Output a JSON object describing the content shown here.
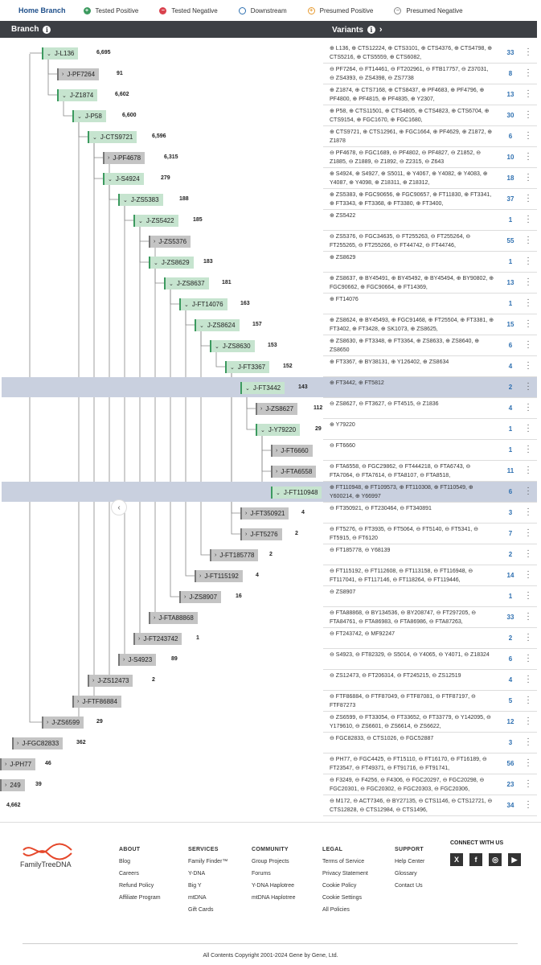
{
  "topbar": {
    "tab": "Home Branch",
    "legend": [
      {
        "label": "Tested Positive",
        "icon": "plus-circle-icon"
      },
      {
        "label": "Tested Negative",
        "icon": "minus-circle-icon"
      },
      {
        "label": "Downstream",
        "icon": "circle-icon"
      },
      {
        "label": "Presumed Positive",
        "icon": "plus-circle-outline-icon"
      },
      {
        "label": "Presumed Negative",
        "icon": "minus-circle-outline-icon"
      }
    ]
  },
  "header": {
    "branch": "Branch",
    "variants": "Variants"
  },
  "colors": {
    "positive": "#3c9a5f",
    "negative": "#d9414d",
    "downstream": "#2d6fb0",
    "presumed_positive": "#e79a2f",
    "header_bg": "#3c3f44",
    "highlight": "#c9d0df"
  },
  "rows": [
    {
      "name": "J-L136",
      "count": "6,695",
      "green": true,
      "variants": "⊕ L136, ⊕ CTS12224, ⊕ CTS3101, ⊕ CTS4376, ⊕ CTS4798, ⊕ CTS5216, ⊕ CTS5559, ⊕ CTS6082,",
      "vcount": "33"
    },
    {
      "name": "J-PF7264",
      "count": "91",
      "green": false,
      "variants": "⊖ PF7264, ⊖ FT14461, ⊖ FT202961, ⊖ FTB17757, ⊖ Z37031, ⊖ ZS4393, ⊖ ZS4398, ⊖ ZS7738",
      "vcount": "8"
    },
    {
      "name": "J-Z1874",
      "count": "6,602",
      "green": true,
      "variants": "⊕ Z1874, ⊕ CTS7168, ⊕ CTS8437, ⊕ PF4683, ⊕ PF4796, ⊕ PF4800, ⊕ PF4815, ⊕ PF4835, ⊕ Y2307,",
      "vcount": "13"
    },
    {
      "name": "J-P58",
      "count": "6,600",
      "green": true,
      "variants": "⊕ P58, ⊕ CTS11501, ⊕ CTS4805, ⊕ CTS4823, ⊕ CTS6704, ⊕ CTS9154, ⊕ FGC1670, ⊕ FGC1680,",
      "vcount": "30"
    },
    {
      "name": "J-CTS9721",
      "count": "6,596",
      "green": true,
      "variants": "⊕ CTS9721, ⊕ CTS12961, ⊕ FGC1664, ⊕ PF4629, ⊕ Z1872, ⊕ Z1878",
      "vcount": "6"
    },
    {
      "name": "J-PF4678",
      "count": "6,315",
      "green": false,
      "variants": "⊖ PF4678, ⊖ FGC1689, ⊖ PF4802, ⊖ PF4827, ⊖ Z1852, ⊖ Z1885, ⊖ Z1889, ⊖ Z1892, ⊖ Z2315, ⊖ Z643",
      "vcount": "10"
    },
    {
      "name": "J-S4924",
      "count": "279",
      "green": true,
      "variants": "⊕ S4924, ⊕ S4927, ⊕ S5011, ⊕ Y4067, ⊕ Y4082, ⊕ Y4083, ⊕ Y4087, ⊕ Y4098, ⊕ Z18311, ⊕ Z18312,",
      "vcount": "18"
    },
    {
      "name": "J-ZS5383",
      "count": "188",
      "green": true,
      "variants": "⊕ ZS5383, ⊕ FGC90656, ⊕ FGC90657, ⊕ FT11830, ⊕ FT3341, ⊕ FT3343, ⊕ FT3368, ⊕ FT3380, ⊕ FT3400,",
      "vcount": "37"
    },
    {
      "name": "J-ZS5422",
      "count": "185",
      "green": true,
      "variants": "⊕ ZS5422",
      "vcount": "1"
    },
    {
      "name": "J-ZS5376",
      "count": "",
      "green": false,
      "variants": "⊖ ZS5376, ⊖ FGC34635, ⊖ FT255263, ⊖ FT255264, ⊖ FT255265, ⊖ FT255266, ⊖ FT44742, ⊖ FT44746,",
      "vcount": "55"
    },
    {
      "name": "J-ZS8629",
      "count": "183",
      "green": true,
      "variants": "⊕ ZS8629",
      "vcount": "1"
    },
    {
      "name": "J-ZS8637",
      "count": "181",
      "green": true,
      "variants": "⊕ ZS8637, ⊕ BY45491, ⊕ BY45492, ⊕ BY45494, ⊕ BY90802, ⊕ FGC90662, ⊕ FGC90664, ⊕ FT14369,",
      "vcount": "13"
    },
    {
      "name": "J-FT14076",
      "count": "163",
      "green": true,
      "variants": "⊕ FT14076",
      "vcount": "1"
    },
    {
      "name": "J-ZS8624",
      "count": "157",
      "green": true,
      "variants": "⊕ ZS8624, ⊕ BY45493, ⊕ FGC91468, ⊕ FT25504, ⊕ FT3381, ⊕ FT3402, ⊕ FT3428, ⊕ SK1073, ⊕ ZS8625,",
      "vcount": "15"
    },
    {
      "name": "J-ZS8630",
      "count": "153",
      "green": true,
      "variants": "⊕ ZS8630, ⊕ FT3348, ⊕ FT3364, ⊕ ZS8633, ⊕ ZS8640, ⊕ ZS8650",
      "vcount": "6"
    },
    {
      "name": "J-FT3367",
      "count": "152",
      "green": true,
      "variants": "⊕ FT3367, ⊕ BY38131, ⊕ Y126402, ⊕ ZS8634",
      "vcount": "4"
    },
    {
      "name": "J-FT3442",
      "count": "143",
      "green": true,
      "variants": "⊕ FT3442, ⊕ FT5812",
      "vcount": "2"
    },
    {
      "name": "J-ZS8627",
      "count": "112",
      "green": false,
      "variants": "⊖ ZS8627, ⊖ FT3627, ⊖ FT4515, ⊖ Z1836",
      "vcount": "4"
    },
    {
      "name": "J-Y79220",
      "count": "29",
      "green": true,
      "variants": "⊕ Y79220",
      "vcount": "1"
    },
    {
      "name": "J-FT6660",
      "count": "26",
      "green": false,
      "variants": "⊖ FT6660",
      "vcount": "1"
    },
    {
      "name": "J-FTA6558",
      "count": "",
      "green": false,
      "variants": "⊖ FTA6558, ⊖ FGC29862, ⊖ FT444218, ⊖ FTA6743, ⊖ FTA7064, ⊖ FTA7614, ⊖ FTA8107, ⊖ FTA8518,",
      "vcount": "11"
    },
    {
      "name": "J-FT110948",
      "count": "",
      "green": true,
      "variants": "⊕ FT110948, ⊕ FT109573, ⊕ FT110308, ⊕ FT110549, ⊕ Y600214, ⊕ Y66997",
      "vcount": "6"
    },
    {
      "name": "J-FT350921",
      "count": "4",
      "green": false,
      "variants": "⊖ FT350921, ⊖ FT230464, ⊖ FT340891",
      "vcount": "3"
    },
    {
      "name": "J-FT5276",
      "count": "2",
      "green": false,
      "variants": "⊖ FT5276, ⊖ FT3935, ⊖ FT5064, ⊖ FT5140, ⊖ FT5341, ⊖ FT5915, ⊖ FT6120",
      "vcount": "7"
    },
    {
      "name": "J-FT185778",
      "count": "2",
      "green": false,
      "variants": "⊖ FT185778, ⊖ Y68139",
      "vcount": "2"
    },
    {
      "name": "J-FT115192",
      "count": "4",
      "green": false,
      "variants": "⊖ FT115192, ⊖ FT112608, ⊖ FT113158, ⊖ FT116948, ⊖ FT117041, ⊖ FT117146, ⊖ FT118264, ⊖ FT119446,",
      "vcount": "14"
    },
    {
      "name": "J-ZS8907",
      "count": "16",
      "green": false,
      "variants": "⊖ ZS8907",
      "vcount": "1"
    },
    {
      "name": "J-FTA88868",
      "count": "",
      "green": false,
      "variants": "⊖ FTA88868, ⊖ BY134536, ⊖ BY208747, ⊖ FT297205, ⊖ FTA84761, ⊖ FTA86983, ⊖ FTA86986, ⊖ FTA87263,",
      "vcount": "33"
    },
    {
      "name": "J-FT243742",
      "count": "1",
      "green": false,
      "variants": "⊖ FT243742, ⊖ MF92247",
      "vcount": "2"
    },
    {
      "name": "J-S4923",
      "count": "89",
      "green": false,
      "variants": "⊖ S4923, ⊖ FT82329, ⊖ S5014, ⊖ Y4065, ⊖ Y4071, ⊖ Z18324",
      "vcount": "6"
    },
    {
      "name": "J-ZS12473",
      "count": "2",
      "green": false,
      "variants": "⊖ ZS12473, ⊖ FT206314, ⊖ FT245215, ⊖ ZS12519",
      "vcount": "4"
    },
    {
      "name": "J-FTF86884",
      "count": "",
      "green": false,
      "variants": "⊖ FTF86884, ⊖ FTF87049, ⊖ FTF87081, ⊖ FTF87197, ⊖ FTF87273",
      "vcount": "5"
    },
    {
      "name": "J-ZS6599",
      "count": "29",
      "green": false,
      "variants": "⊖ ZS6599, ⊖ FT33054, ⊖ FT33652, ⊖ FT33779, ⊖ Y142095, ⊖ Y179610, ⊖ ZS6601, ⊖ ZS6614, ⊖ ZS6622,",
      "vcount": "12"
    },
    {
      "name": "J-FGC82833",
      "count": "362",
      "green": false,
      "variants": "⊖ FGC82833, ⊖ CTS1026, ⊖ FGC52887",
      "vcount": "3"
    },
    {
      "name": "J-PH77",
      "count": "46",
      "green": false,
      "variants": "⊖ PH77, ⊖ FGC4425, ⊖ FT15110, ⊖ FT16170, ⊖ FT16189, ⊖ FT23547, ⊖ FT49371, ⊖ FT91716, ⊖ FT91741,",
      "vcount": "56"
    },
    {
      "name": "249",
      "count": "39",
      "green": false,
      "variants": "⊖ F3249, ⊖ F4256, ⊖ F4306, ⊖ FGC20297, ⊖ FGC20298, ⊖ FGC20301, ⊖ FGC20302, ⊖ FGC20303, ⊖ FGC20306,",
      "vcount": "23"
    },
    {
      "name": "",
      "count": "4,662",
      "green": false,
      "variants": "⊖ M172, ⊖ ACT7346, ⊖ BY27135, ⊖ CTS1146, ⊖ CTS12721, ⊖ CTS12828, ⊖ CTS12984, ⊖ CTS1496,",
      "vcount": "34"
    }
  ],
  "footer": {
    "logo": "FamilyTreeDNA",
    "columns": [
      {
        "title": "ABOUT",
        "items": [
          "Blog",
          "Careers",
          "Refund Policy",
          "Affiliate Program"
        ]
      },
      {
        "title": "SERVICES",
        "items": [
          "Family Finder™",
          "Y-DNA",
          "Big Y",
          "mtDNA",
          "Gift Cards"
        ]
      },
      {
        "title": "COMMUNITY",
        "items": [
          "Group Projects",
          "Forums",
          "Y-DNA Haplotree",
          "mtDNA Haplotree"
        ]
      },
      {
        "title": "LEGAL",
        "items": [
          "Terms of Service",
          "Privacy Statement",
          "Cookie Policy",
          "Cookie Settings",
          "All Policies"
        ]
      },
      {
        "title": "SUPPORT",
        "items": [
          "Help Center",
          "Glossary",
          "Contact Us"
        ]
      }
    ],
    "connect": "CONNECT WITH US",
    "social": [
      "x-icon",
      "facebook-icon",
      "instagram-icon",
      "youtube-icon"
    ],
    "copyright": "All Contents Copyright 2001-2024 Gene by Gene, Ltd."
  }
}
